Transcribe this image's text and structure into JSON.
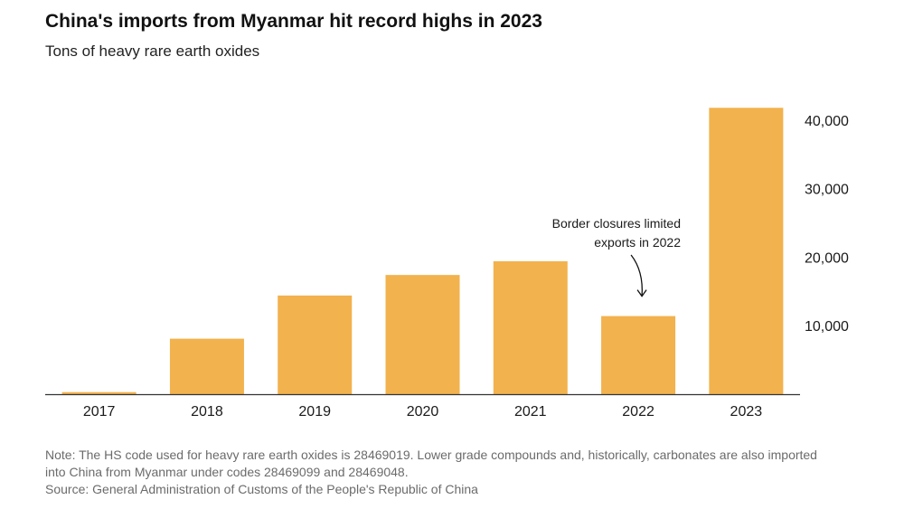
{
  "header": {
    "title": "China's imports from Myanmar hit record highs in 2023",
    "subtitle": "Tons of heavy rare earth oxides"
  },
  "colors": {
    "bar": "#f2b24d",
    "axis": "#333333",
    "text": "#1a1a1a"
  },
  "chart_data": {
    "type": "bar",
    "categories": [
      "2017",
      "2018",
      "2019",
      "2020",
      "2021",
      "2022",
      "2023"
    ],
    "values": [
      300,
      8100,
      14400,
      17400,
      19400,
      11400,
      41800
    ],
    "ylim": [
      0,
      45000
    ],
    "yticks": [
      10000,
      20000,
      30000,
      40000
    ],
    "ytick_labels": [
      "10,000",
      "20,000",
      "30,000",
      "40,000"
    ],
    "y_axis_side": "right",
    "grid": false,
    "legend": "none",
    "annotation": {
      "category": "2022",
      "lines": [
        "Border closures limited",
        "exports in 2022"
      ]
    }
  },
  "footer": {
    "note_line1": "Note: The HS code used for heavy rare earth oxides is 28469019. Lower grade compounds and, historically, carbonates are also imported",
    "note_line2": "into China from Myanmar under codes 28469099 and 28469048.",
    "source": "Source: General Administration of Customs of the People's Republic of China"
  }
}
